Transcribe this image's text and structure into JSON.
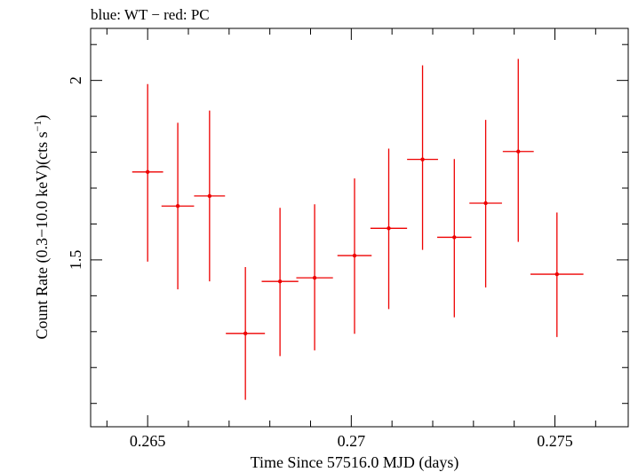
{
  "chart_data": {
    "type": "scatter",
    "title": "blue: WT − red: PC",
    "xlabel": "Time Since 57516.0 MJD (days)",
    "ylabel_main": "Count Rate (0.3−10.0 keV)(cts s",
    "ylabel_sup": "−1",
    "ylabel_end": ")",
    "xlim": [
      0.2636,
      0.2768
    ],
    "ylim": [
      1.035,
      2.145
    ],
    "x_ticks": [
      0.265,
      0.27,
      0.275
    ],
    "x_tick_labels": [
      "0.265",
      "0.27",
      "0.275"
    ],
    "y_ticks": [
      1.5,
      2.0
    ],
    "y_tick_labels": [
      "1.5",
      "2"
    ],
    "grid": false,
    "series": [
      {
        "color": "#ee0000",
        "x": [
          0.265,
          0.26574,
          0.26652,
          0.2674,
          0.26825,
          0.2691,
          0.27008,
          0.27092,
          0.27175,
          0.27253,
          0.2733,
          0.2741,
          0.27505
        ],
        "x_err": [
          0.00038,
          0.0004,
          0.00038,
          0.00048,
          0.00045,
          0.00045,
          0.00042,
          0.00045,
          0.00038,
          0.00042,
          0.0004,
          0.00038,
          0.00065
        ],
        "y": [
          1.745,
          1.65,
          1.678,
          1.295,
          1.44,
          1.45,
          1.512,
          1.588,
          1.78,
          1.563,
          1.658,
          1.802,
          1.46
        ],
        "y_err_low": [
          0.25,
          0.232,
          0.238,
          0.185,
          0.208,
          0.202,
          0.218,
          0.225,
          0.252,
          0.223,
          0.235,
          0.252,
          0.175
        ],
        "y_err_high": [
          0.245,
          0.232,
          0.238,
          0.185,
          0.205,
          0.205,
          0.215,
          0.222,
          0.262,
          0.218,
          0.232,
          0.258,
          0.172
        ]
      }
    ]
  }
}
